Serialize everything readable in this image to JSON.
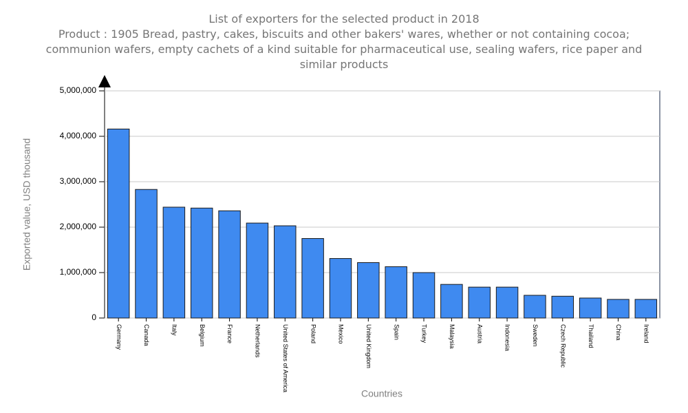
{
  "chart_data": {
    "type": "bar",
    "title": "List of exporters for the selected product in 2018",
    "subtitle": "Product : 1905 Bread, pastry, cakes, biscuits and other bakers' wares, whether or not containing cocoa; communion wafers, empty cachets of a kind suitable for pharmaceutical use, sealing wafers, rice paper and similar products",
    "x_label": "Countries",
    "y_label": "Exported value, USD thousand",
    "categories": [
      "Germany",
      "Canada",
      "Italy",
      "Belgium",
      "France",
      "Netherlands",
      "United States of America",
      "Poland",
      "Mexico",
      "United Kingdom",
      "Spain",
      "Turkey",
      "Malaysia",
      "Austria",
      "Indonesia",
      "Sweden",
      "Czech Republic",
      "Thailand",
      "China",
      "Ireland"
    ],
    "values": [
      4160000,
      2830000,
      2440000,
      2420000,
      2360000,
      2090000,
      2030000,
      1750000,
      1310000,
      1220000,
      1130000,
      1000000,
      740000,
      680000,
      680000,
      500000,
      480000,
      440000,
      410000,
      410000
    ],
    "color": "#3f8af0",
    "ylim": [
      0,
      5000000
    ],
    "yticks": [
      0,
      {
        "value": 1000000,
        "label": "1,000,000"
      },
      {
        "value": 2000000,
        "label": "2,000,000"
      },
      {
        "value": 3000000,
        "label": "3,000,000"
      },
      {
        "value": 4000000,
        "label": "4,000,000"
      },
      {
        "value": 5000000,
        "label": "5,000,000"
      }
    ],
    "grid": true
  }
}
